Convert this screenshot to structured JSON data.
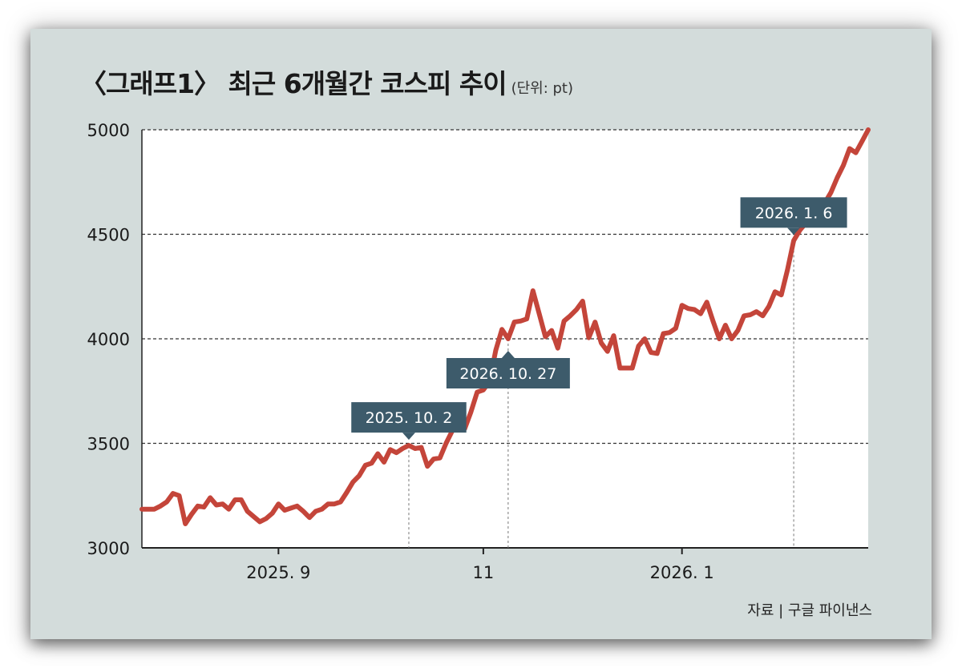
{
  "chart_data": {
    "type": "line",
    "title": "〈그래프1〉 최근 6개월간 코스피 추이",
    "unit": "(단위: pt)",
    "source": "자료 | 구글 파이낸스",
    "ylim": [
      3000,
      5000
    ],
    "yticks": [
      3000,
      3500,
      4000,
      4500,
      5000
    ],
    "xticks": [
      {
        "label": "2025. 9",
        "index": 22
      },
      {
        "label": "11",
        "index": 55
      },
      {
        "label": "2026. 1",
        "index": 87
      }
    ],
    "grid": "horizontal dashed",
    "color": "#c4453a",
    "series": [
      {
        "values": [
          3185,
          3185,
          3185,
          3200,
          3220,
          3260,
          3250,
          3115,
          3160,
          3200,
          3195,
          3240,
          3205,
          3210,
          3185,
          3230,
          3230,
          3175,
          3150,
          3125,
          3140,
          3165,
          3210,
          3180,
          3190,
          3200,
          3175,
          3145,
          3175,
          3185,
          3210,
          3210,
          3220,
          3265,
          3315,
          3345,
          3395,
          3405,
          3450,
          3410,
          3470,
          3455,
          3475,
          3490,
          3475,
          3480,
          3390,
          3425,
          3430,
          3500,
          3560,
          3595,
          3570,
          3650,
          3745,
          3755,
          3795,
          3945,
          4045,
          4000,
          4080,
          4085,
          4095,
          4230,
          4120,
          4010,
          4040,
          3955,
          4085,
          4110,
          4140,
          4180,
          4005,
          4080,
          3980,
          3940,
          4015,
          3860,
          3860,
          3860,
          3965,
          4000,
          3935,
          3930,
          4025,
          4030,
          4050,
          4160,
          4145,
          4140,
          4120,
          4175,
          4085,
          4000,
          4065,
          4000,
          4040,
          4110,
          4115,
          4130,
          4110,
          4155,
          4225,
          4210,
          4330,
          4470,
          4520,
          4555,
          4560,
          4590,
          4650,
          4700,
          4770,
          4830,
          4910,
          4890,
          4945,
          5000
        ]
      }
    ],
    "annotations": [
      {
        "label": "2025. 10. 2",
        "index": 43
      },
      {
        "label": "2026. 10. 27",
        "index": 59
      },
      {
        "label": "2026. 1. 6",
        "index": 105
      }
    ]
  }
}
